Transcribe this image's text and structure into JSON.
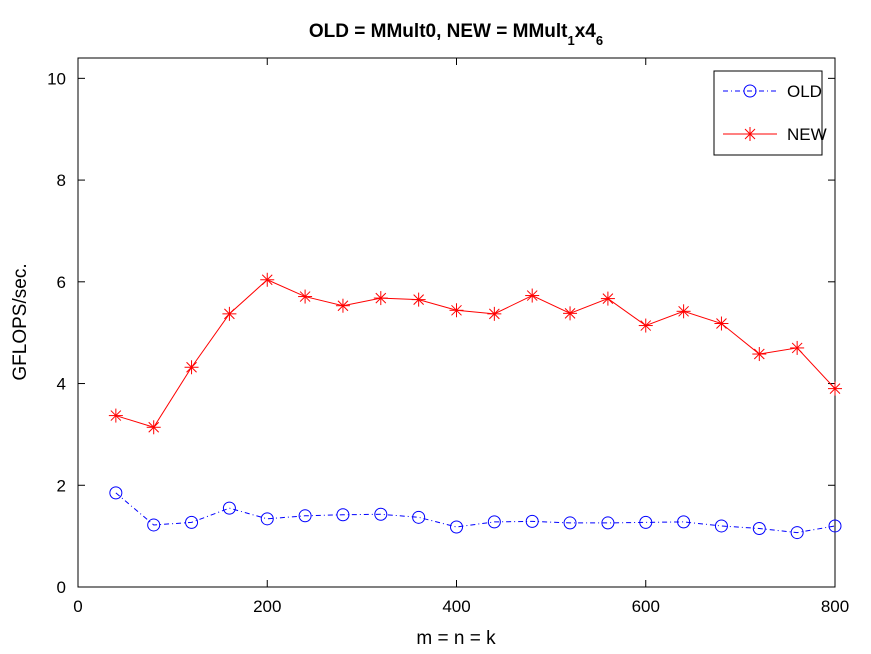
{
  "chart_data": {
    "type": "line",
    "title": "OLD = MMult0, NEW = MMult",
    "title_sub1": "1",
    "title_mid": "x4",
    "title_sub2": "6",
    "xlabel": "m = n = k",
    "ylabel": "GFLOPS/sec.",
    "xlim": [
      0,
      800
    ],
    "ylim": [
      0,
      10.4
    ],
    "xticks": [
      0,
      200,
      400,
      600,
      800
    ],
    "yticks": [
      0,
      2,
      4,
      6,
      8,
      10
    ],
    "grid": false,
    "legend_position": "top-right",
    "x": [
      40,
      80,
      120,
      160,
      200,
      240,
      280,
      320,
      360,
      400,
      440,
      480,
      520,
      560,
      600,
      640,
      680,
      720,
      760,
      800
    ],
    "series": [
      {
        "name": "OLD",
        "color": "#0000ff",
        "line_style": "dash-dot",
        "marker": "circle",
        "values": [
          1.85,
          1.22,
          1.27,
          1.55,
          1.34,
          1.4,
          1.42,
          1.43,
          1.37,
          1.18,
          1.28,
          1.29,
          1.26,
          1.26,
          1.27,
          1.28,
          1.2,
          1.15,
          1.07,
          1.2
        ]
      },
      {
        "name": "NEW",
        "color": "#ff0000",
        "line_style": "solid",
        "marker": "asterisk",
        "values": [
          3.37,
          3.14,
          4.32,
          5.37,
          6.04,
          5.71,
          5.53,
          5.68,
          5.65,
          5.44,
          5.37,
          5.73,
          5.38,
          5.67,
          5.14,
          5.42,
          5.18,
          4.58,
          4.7,
          3.9
        ]
      }
    ]
  }
}
